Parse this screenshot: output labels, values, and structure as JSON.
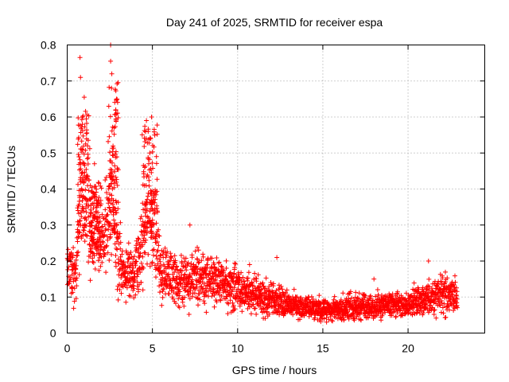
{
  "chart_data": {
    "type": "scatter",
    "title": "Day 241 of 2025, SRMTID for receiver espa",
    "xlabel": "GPS time / hours",
    "ylabel": "SRMTID / TECUs",
    "xlim": [
      0,
      24.5
    ],
    "ylim": [
      0,
      0.8
    ],
    "xticks": [
      0,
      5,
      10,
      15,
      20
    ],
    "yticks": [
      0,
      0.1,
      0.2,
      0.3,
      0.4,
      0.5,
      0.6,
      0.7,
      0.8
    ],
    "x_tick_labels": [
      "0",
      "5",
      "10",
      "15",
      "20"
    ],
    "y_tick_labels": [
      "0",
      "0.1",
      "0.2",
      "0.3",
      "0.4",
      "0.5",
      "0.6",
      "0.7",
      "0.8"
    ],
    "grid": true,
    "marker": "+",
    "color": "#ff0000",
    "x_range_of_points": [
      0,
      22.9
    ],
    "trend": [
      {
        "x": 0.0,
        "y": 0.19
      },
      {
        "x": 0.25,
        "y": 0.17
      },
      {
        "x": 0.5,
        "y": 0.14
      },
      {
        "x": 0.7,
        "y": 0.3
      },
      {
        "x": 0.9,
        "y": 0.45
      },
      {
        "x": 1.1,
        "y": 0.38
      },
      {
        "x": 1.5,
        "y": 0.28
      },
      {
        "x": 2.0,
        "y": 0.25
      },
      {
        "x": 2.4,
        "y": 0.3
      },
      {
        "x": 2.7,
        "y": 0.4
      },
      {
        "x": 3.0,
        "y": 0.2
      },
      {
        "x": 3.5,
        "y": 0.17
      },
      {
        "x": 4.0,
        "y": 0.17
      },
      {
        "x": 4.4,
        "y": 0.24
      },
      {
        "x": 4.8,
        "y": 0.38
      },
      {
        "x": 5.2,
        "y": 0.3
      },
      {
        "x": 5.5,
        "y": 0.17
      },
      {
        "x": 6.5,
        "y": 0.15
      },
      {
        "x": 7.5,
        "y": 0.15
      },
      {
        "x": 8.5,
        "y": 0.15
      },
      {
        "x": 10.0,
        "y": 0.12
      },
      {
        "x": 11.0,
        "y": 0.11
      },
      {
        "x": 12.0,
        "y": 0.09
      },
      {
        "x": 13.0,
        "y": 0.08
      },
      {
        "x": 14.0,
        "y": 0.07
      },
      {
        "x": 15.0,
        "y": 0.065
      },
      {
        "x": 16.0,
        "y": 0.07
      },
      {
        "x": 17.0,
        "y": 0.07
      },
      {
        "x": 18.0,
        "y": 0.075
      },
      {
        "x": 19.0,
        "y": 0.08
      },
      {
        "x": 20.0,
        "y": 0.08
      },
      {
        "x": 21.0,
        "y": 0.095
      },
      {
        "x": 22.0,
        "y": 0.11
      },
      {
        "x": 22.9,
        "y": 0.1
      }
    ],
    "spikes": [
      {
        "x": 0.75,
        "y": 0.765
      },
      {
        "x": 0.78,
        "y": 0.71
      },
      {
        "x": 1.0,
        "y": 0.655
      },
      {
        "x": 0.9,
        "y": 0.6
      },
      {
        "x": 1.2,
        "y": 0.52
      },
      {
        "x": 1.6,
        "y": 0.47
      },
      {
        "x": 2.55,
        "y": 0.8
      },
      {
        "x": 2.55,
        "y": 0.755
      },
      {
        "x": 2.62,
        "y": 0.72
      },
      {
        "x": 2.6,
        "y": 0.68
      },
      {
        "x": 2.9,
        "y": 0.65
      },
      {
        "x": 2.85,
        "y": 0.62
      },
      {
        "x": 2.75,
        "y": 0.57
      },
      {
        "x": 2.95,
        "y": 0.41
      },
      {
        "x": 4.65,
        "y": 0.59
      },
      {
        "x": 4.95,
        "y": 0.6
      },
      {
        "x": 4.75,
        "y": 0.56
      },
      {
        "x": 4.85,
        "y": 0.5
      },
      {
        "x": 4.55,
        "y": 0.46
      },
      {
        "x": 5.2,
        "y": 0.39
      },
      {
        "x": 7.2,
        "y": 0.3
      },
      {
        "x": 12.3,
        "y": 0.21
      },
      {
        "x": 21.2,
        "y": 0.2
      },
      {
        "x": 18.0,
        "y": 0.15
      },
      {
        "x": 10.7,
        "y": 0.19
      }
    ]
  }
}
